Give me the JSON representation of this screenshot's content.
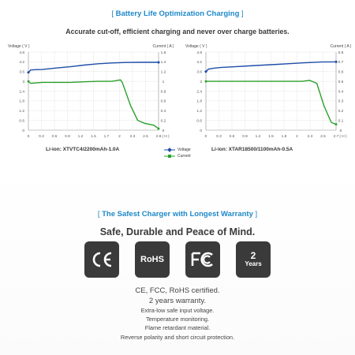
{
  "section1": {
    "bracket_left": "[",
    "title": "Battery Life Optimization Charging",
    "bracket_right": "]",
    "headline": "Accurate cut-off, efficient charging and never over charge batteries."
  },
  "legend": {
    "voltage": "Voltage",
    "current": "Current",
    "voltage_color": "#1f4ea8",
    "current_color": "#2aa02a"
  },
  "chart_data": [
    {
      "type": "line",
      "caption": "Li-ion: XTVTC4/2200mAh-1.0A",
      "ylabel_left": "Voltage ( V )",
      "ylabel_right": "Current ( A )",
      "xlabel_unit": "( H )",
      "xlim": [
        0,
        2.8
      ],
      "x_ticks": [
        "0",
        "0.3",
        "0.6",
        "0.9",
        "1.2",
        "1.5",
        "1.7",
        "2",
        "2.3",
        "2.5",
        "2.8"
      ],
      "y_left_ticks": [
        "4.8",
        "4.2",
        "3.6",
        "3",
        "2.4",
        "1.8",
        "1.2",
        "0.6",
        "0"
      ],
      "y_left_range": [
        0,
        4.8
      ],
      "y_right_ticks": [
        "1.6",
        "1.4",
        "1.2",
        "1",
        "0.8",
        "0.6",
        "0.4",
        "0.2",
        "0"
      ],
      "y_right_range": [
        0,
        1.6
      ],
      "series": [
        {
          "name": "Voltage",
          "axis": "left",
          "x": [
            0,
            0.05,
            0.15,
            0.3,
            0.6,
            0.9,
            1.2,
            1.5,
            1.8,
            2.1,
            2.4,
            2.8
          ],
          "y": [
            3.55,
            3.7,
            3.72,
            3.73,
            3.82,
            3.9,
            4.0,
            4.08,
            4.13,
            4.16,
            4.17,
            4.17
          ]
        },
        {
          "name": "Current",
          "axis": "right",
          "x": [
            0,
            0.05,
            0.3,
            0.9,
            1.2,
            1.5,
            1.8,
            1.98,
            2.02,
            2.2,
            2.35,
            2.5,
            2.7,
            2.8
          ],
          "y": [
            1.0,
            0.96,
            0.98,
            0.98,
            0.99,
            1.0,
            1.0,
            1.03,
            0.98,
            0.5,
            0.2,
            0.14,
            0.1,
            0.03
          ]
        }
      ]
    },
    {
      "type": "line",
      "caption": "Li-ion: XTAR18500/1100mAh-0.5A",
      "ylabel_left": "Voltage ( V )",
      "ylabel_right": "Current ( A )",
      "xlabel_unit": "( H )",
      "xlim": [
        0,
        2.7
      ],
      "x_ticks": [
        "0",
        "0.3",
        "0.6",
        "0.9",
        "1.2",
        "1.5",
        "1.8",
        "2",
        "2.3",
        "2.5",
        "2.7"
      ],
      "y_left_ticks": [
        "4.8",
        "4.2",
        "3.6",
        "3",
        "2.4",
        "1.8",
        "1.2",
        "0.6",
        "0"
      ],
      "y_left_range": [
        0,
        4.8
      ],
      "y_right_ticks": [
        "0.8",
        "0.7",
        "0.6",
        "0.5",
        "0.4",
        "0.3",
        "0.2",
        "0.1",
        "0"
      ],
      "y_right_range": [
        0,
        0.8
      ],
      "series": [
        {
          "name": "Voltage",
          "axis": "left",
          "x": [
            0,
            0.05,
            0.15,
            0.3,
            0.6,
            0.9,
            1.2,
            1.5,
            1.8,
            2.1,
            2.4,
            2.7
          ],
          "y": [
            3.6,
            3.75,
            3.8,
            3.85,
            3.9,
            3.95,
            4.0,
            4.05,
            4.1,
            4.15,
            4.19,
            4.2
          ]
        },
        {
          "name": "Current",
          "axis": "right",
          "x": [
            0,
            0.05,
            0.3,
            0.9,
            1.5,
            2.0,
            2.15,
            2.3,
            2.45,
            2.6,
            2.7
          ],
          "y": [
            0.5,
            0.5,
            0.5,
            0.5,
            0.5,
            0.5,
            0.51,
            0.48,
            0.25,
            0.08,
            0.06
          ]
        }
      ]
    }
  ],
  "section2": {
    "bracket_left": "[",
    "title": "The Safest Charger with Longest Warranty",
    "bracket_right": "]",
    "headline": "Safe, Durable and Peace of Mind."
  },
  "badges": [
    {
      "icon": "ce-mark-icon",
      "label": "CE"
    },
    {
      "icon": "rohs-mark-icon",
      "label": "RoHS"
    },
    {
      "icon": "fcc-mark-icon",
      "label": "FC"
    },
    {
      "icon": "warranty-badge-icon",
      "label_top": "2",
      "label_bottom": "Years"
    }
  ],
  "features": [
    "CE, FCC, RoHS certified.",
    "2 years warranty.",
    "Extra-low safe input voltage.",
    "Temperature monitoring.",
    "Flame retardant material.",
    "Reverse polarity and short circuit protection."
  ]
}
